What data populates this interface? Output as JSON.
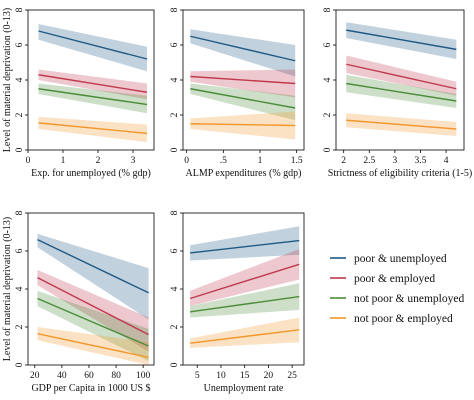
{
  "figure": {
    "ylabel": "Level of material deprivation (0-13)"
  },
  "colors": {
    "poor_unemployed": "#1f5a85",
    "poor_employed": "#c0394f",
    "notpoor_unemployed": "#4a8c3a",
    "notpoor_employed": "#f2972b"
  },
  "legend": [
    {
      "key": "poor_unemployed",
      "label": "poor & unemployed"
    },
    {
      "key": "poor_employed",
      "label": "poor & employed"
    },
    {
      "key": "notpoor_unemployed",
      "label": "not poor & unemployed"
    },
    {
      "key": "notpoor_employed",
      "label": "not poor & employed"
    }
  ],
  "chart_data": [
    {
      "type": "line",
      "xlabel": "Exp. for unemployed (% gdp)",
      "ylabel": "Level of material deprivation (0-13)",
      "xlim": [
        0,
        3.6
      ],
      "ylim": [
        0,
        8
      ],
      "xticks": [
        0,
        1,
        2,
        3
      ],
      "xtick_labels": [
        "0",
        "1",
        "2",
        "3"
      ],
      "yticks": [
        0,
        2,
        4,
        6,
        8
      ],
      "ytick_labels": [
        "0",
        "2",
        "4",
        "6",
        "8"
      ],
      "x": [
        0.3,
        3.4
      ],
      "series": [
        {
          "key": "poor_unemployed",
          "name": "poor & unemployed",
          "values": [
            6.8,
            5.2
          ],
          "lower": [
            6.3,
            4.5
          ],
          "upper": [
            7.2,
            5.9
          ]
        },
        {
          "key": "poor_employed",
          "name": "poor & employed",
          "values": [
            4.3,
            3.3
          ],
          "lower": [
            4.0,
            2.9
          ],
          "upper": [
            4.6,
            3.8
          ]
        },
        {
          "key": "notpoor_unemployed",
          "name": "not poor & unemployed",
          "values": [
            3.5,
            2.6
          ],
          "lower": [
            3.2,
            2.1
          ],
          "upper": [
            3.8,
            3.1
          ]
        },
        {
          "key": "notpoor_employed",
          "name": "not poor & employed",
          "values": [
            1.55,
            0.95
          ],
          "lower": [
            1.2,
            0.45
          ],
          "upper": [
            1.9,
            1.45
          ]
        }
      ]
    },
    {
      "type": "line",
      "xlabel": "ALMP expenditures (% gdp)",
      "ylabel": "",
      "xlim": [
        -0.05,
        1.6
      ],
      "ylim": [
        0,
        8
      ],
      "xticks": [
        0,
        0.5,
        1,
        1.5
      ],
      "xtick_labels": [
        "0",
        ".5",
        "1",
        "1.5"
      ],
      "yticks": [
        0,
        2,
        4,
        6,
        8
      ],
      "ytick_labels": [
        "0",
        "2",
        "4",
        "6",
        "8"
      ],
      "x": [
        0.05,
        1.48
      ],
      "series": [
        {
          "key": "poor_unemployed",
          "name": "poor & unemployed",
          "values": [
            6.5,
            5.1
          ],
          "lower": [
            6.1,
            4.2
          ],
          "upper": [
            6.9,
            6.0
          ]
        },
        {
          "key": "poor_employed",
          "name": "poor & employed",
          "values": [
            4.2,
            3.8
          ],
          "lower": [
            3.9,
            3.0
          ],
          "upper": [
            4.5,
            4.6
          ]
        },
        {
          "key": "notpoor_unemployed",
          "name": "not poor & unemployed",
          "values": [
            3.5,
            2.4
          ],
          "lower": [
            3.2,
            1.7
          ],
          "upper": [
            3.8,
            3.1
          ]
        },
        {
          "key": "notpoor_employed",
          "name": "not poor & employed",
          "values": [
            1.5,
            1.4
          ],
          "lower": [
            1.2,
            0.6
          ],
          "upper": [
            1.8,
            2.2
          ]
        }
      ]
    },
    {
      "type": "line",
      "xlabel": "Strictness of eligibility criteria (1-5)",
      "ylabel": "",
      "xlim": [
        1.85,
        4.35
      ],
      "ylim": [
        0,
        8
      ],
      "xticks": [
        2,
        2.5,
        3,
        3.5,
        4
      ],
      "xtick_labels": [
        "2",
        "2.5",
        "3",
        "3.5",
        "4"
      ],
      "yticks": [
        0,
        2,
        4,
        6,
        8
      ],
      "ytick_labels": [
        "0",
        "2",
        "4",
        "6",
        "8"
      ],
      "x": [
        2.05,
        4.2
      ],
      "series": [
        {
          "key": "poor_unemployed",
          "name": "poor & unemployed",
          "values": [
            6.85,
            5.75
          ],
          "lower": [
            6.4,
            5.2
          ],
          "upper": [
            7.3,
            6.3
          ]
        },
        {
          "key": "poor_employed",
          "name": "poor & employed",
          "values": [
            4.9,
            3.5
          ],
          "lower": [
            4.4,
            3.1
          ],
          "upper": [
            5.4,
            3.9
          ]
        },
        {
          "key": "notpoor_unemployed",
          "name": "not poor & unemployed",
          "values": [
            3.8,
            2.8
          ],
          "lower": [
            3.3,
            2.4
          ],
          "upper": [
            4.3,
            3.2
          ]
        },
        {
          "key": "notpoor_employed",
          "name": "not poor & employed",
          "values": [
            1.7,
            1.2
          ],
          "lower": [
            1.3,
            0.8
          ],
          "upper": [
            2.1,
            1.6
          ]
        }
      ]
    },
    {
      "type": "line",
      "xlabel": "GDP per Capita in 1000 US $",
      "ylabel": "Level of material deprivation (0-13)",
      "xlim": [
        15,
        108
      ],
      "ylim": [
        0,
        8
      ],
      "xticks": [
        20,
        40,
        60,
        80,
        100
      ],
      "xtick_labels": [
        "20",
        "40",
        "60",
        "80",
        "100"
      ],
      "yticks": [
        0,
        2,
        4,
        6,
        8
      ],
      "ytick_labels": [
        "0",
        "2",
        "4",
        "6",
        "8"
      ],
      "x": [
        22,
        104
      ],
      "series": [
        {
          "key": "poor_unemployed",
          "name": "poor & unemployed",
          "values": [
            6.6,
            3.8
          ],
          "lower": [
            6.2,
            2.4
          ],
          "upper": [
            6.9,
            5.1
          ]
        },
        {
          "key": "poor_employed",
          "name": "poor & employed",
          "values": [
            4.6,
            1.6
          ],
          "lower": [
            4.2,
            0.7
          ],
          "upper": [
            5.0,
            2.5
          ]
        },
        {
          "key": "notpoor_unemployed",
          "name": "not poor & unemployed",
          "values": [
            3.5,
            1.0
          ],
          "lower": [
            3.1,
            0.2
          ],
          "upper": [
            3.9,
            1.9
          ]
        },
        {
          "key": "notpoor_employed",
          "name": "not poor & employed",
          "values": [
            1.65,
            0.4
          ],
          "lower": [
            1.3,
            0.0
          ],
          "upper": [
            2.0,
            1.2
          ]
        }
      ]
    },
    {
      "type": "line",
      "xlabel": "Unemployment rate",
      "ylabel": "",
      "xlim": [
        2,
        27.5
      ],
      "ylim": [
        0,
        8
      ],
      "xticks": [
        5,
        10,
        15,
        20,
        25
      ],
      "xtick_labels": [
        "5",
        "10",
        "15",
        "20",
        "25"
      ],
      "yticks": [
        0,
        2,
        4,
        6,
        8
      ],
      "ytick_labels": [
        "0",
        "2",
        "4",
        "6",
        "8"
      ],
      "x": [
        3.5,
        26.5
      ],
      "series": [
        {
          "key": "poor_unemployed",
          "name": "poor & unemployed",
          "values": [
            5.9,
            6.55
          ],
          "lower": [
            5.5,
            5.8
          ],
          "upper": [
            6.3,
            7.3
          ]
        },
        {
          "key": "poor_employed",
          "name": "poor & employed",
          "values": [
            3.5,
            5.3
          ],
          "lower": [
            3.1,
            4.5
          ],
          "upper": [
            3.9,
            6.1
          ]
        },
        {
          "key": "notpoor_unemployed",
          "name": "not poor & unemployed",
          "values": [
            2.8,
            3.6
          ],
          "lower": [
            2.5,
            2.9
          ],
          "upper": [
            3.1,
            4.3
          ]
        },
        {
          "key": "notpoor_employed",
          "name": "not poor & employed",
          "values": [
            1.15,
            1.85
          ],
          "lower": [
            0.9,
            1.2
          ],
          "upper": [
            1.4,
            2.5
          ]
        }
      ]
    }
  ]
}
